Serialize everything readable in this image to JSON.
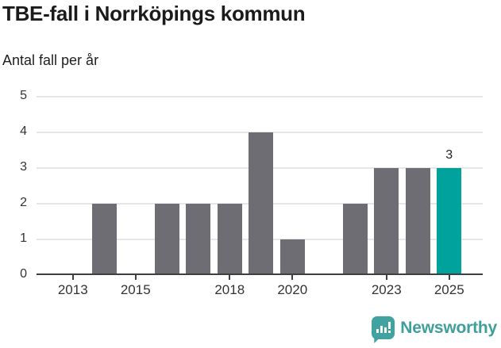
{
  "title": "TBE-fall i Norrköpings kommun",
  "subtitle": "Antal fall per år",
  "colors": {
    "bar_default": "#6e6d73",
    "bar_highlight": "#00a39b",
    "gridline": "#e6e6e6",
    "axis": "#3e3e43",
    "title_text": "#1b1b1b",
    "tick_text": "#333333",
    "brand_teal": "#3f9f9b"
  },
  "chart_data": {
    "type": "bar",
    "title": "TBE-fall i Norrköpings kommun",
    "subtitle": "Antal fall per år",
    "xlabel": "",
    "ylabel": "Antal fall per år",
    "categories": [
      2013,
      2014,
      2015,
      2016,
      2017,
      2018,
      2019,
      2020,
      2021,
      2022,
      2023,
      2024,
      2025
    ],
    "values": [
      0,
      2,
      0,
      2,
      2,
      2,
      4,
      1,
      0,
      2,
      3,
      3,
      3
    ],
    "ylim": [
      0,
      5
    ],
    "yticks": [
      0,
      1,
      2,
      3,
      4,
      5
    ],
    "xticks": [
      2013,
      2015,
      2018,
      2020,
      2023,
      2025
    ],
    "grid": "horizontal",
    "legend": "none",
    "highlight_category": 2025,
    "annotation": {
      "category": 2025,
      "text": "3"
    }
  },
  "footer": {
    "brand_name": "Newsworthy",
    "logo_icon": "bar-chart-speech-bubble-icon"
  }
}
